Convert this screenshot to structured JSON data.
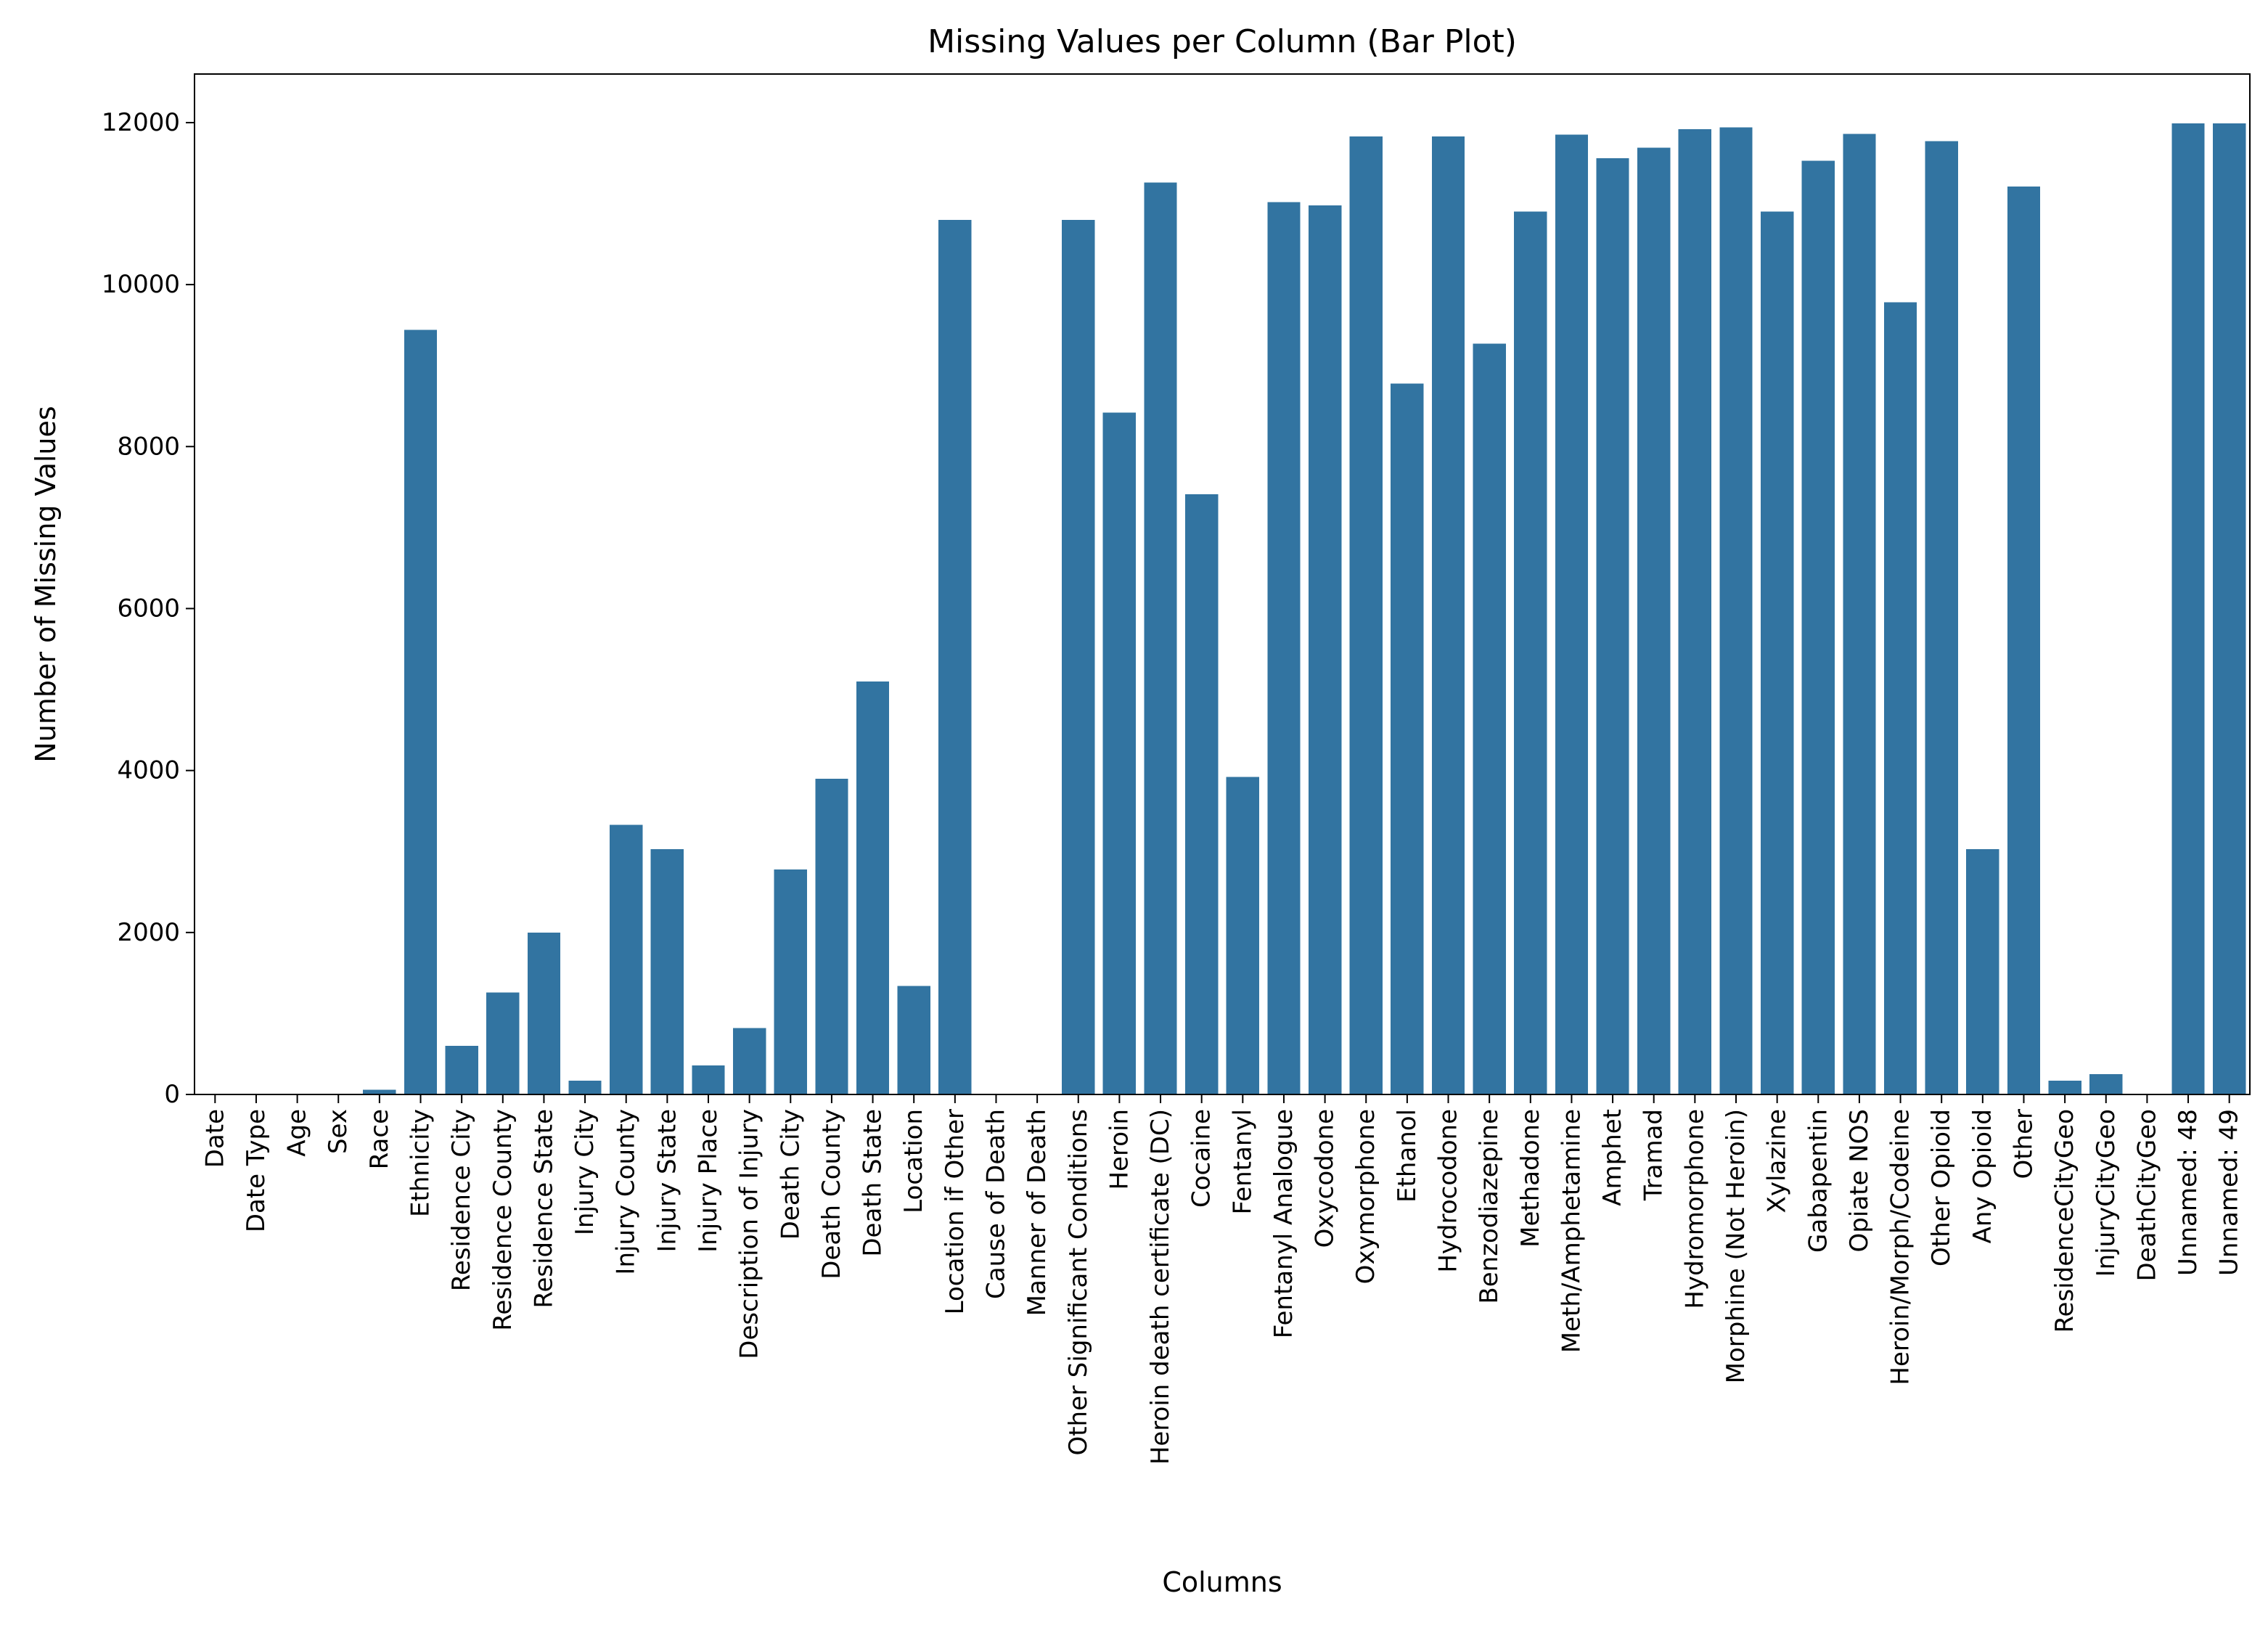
{
  "chart_data": {
    "type": "bar",
    "title": "Missing Values per Column (Bar Plot)",
    "xlabel": "Columns",
    "ylabel": "Number of Missing Values",
    "ylim": [
      0,
      12600
    ],
    "yticks": [
      0,
      2000,
      4000,
      6000,
      8000,
      10000,
      12000
    ],
    "grid": false,
    "legend": "none",
    "bar_color": "#3274a1",
    "categories": [
      "Date",
      "Date Type",
      "Age",
      "Sex",
      "Race",
      "Ethnicity",
      "Residence City",
      "Residence County",
      "Residence State",
      "Injury City",
      "Injury County",
      "Injury State",
      "Injury Place",
      "Description of Injury",
      "Death City",
      "Death County",
      "Death State",
      "Location",
      "Location if Other",
      "Cause of Death",
      "Manner of Death",
      "Other Significant Conditions",
      "Heroin",
      "Heroin death certificate (DC)",
      "Cocaine",
      "Fentanyl",
      "Fentanyl Analogue",
      "Oxycodone",
      "Oxymorphone",
      "Ethanol",
      "Hydrocodone",
      "Benzodiazepine",
      "Methadone",
      "Meth/Amphetamine",
      "Amphet",
      "Tramad",
      "Hydromorphone",
      "Morphine (Not Heroin)",
      "Xylazine",
      "Gabapentin",
      "Opiate NOS",
      "Heroin/Morph/Codeine",
      "Other Opioid",
      "Any Opioid",
      "Other",
      "ResidenceCityGeo",
      "InjuryCityGeo",
      "DeathCityGeo",
      "Unnamed: 48",
      "Unnamed: 49"
    ],
    "values": [
      0,
      0,
      0,
      0,
      60,
      9440,
      600,
      1260,
      2000,
      170,
      3330,
      3030,
      360,
      820,
      2780,
      3900,
      5100,
      1340,
      10800,
      0,
      0,
      10800,
      8420,
      11260,
      7410,
      3920,
      11020,
      10980,
      11830,
      8780,
      11830,
      9270,
      10900,
      11850,
      11560,
      11690,
      11920,
      11940,
      10900,
      11530,
      11860,
      9780,
      11770,
      3030,
      11210,
      170,
      250,
      0,
      11990,
      11990
    ]
  }
}
